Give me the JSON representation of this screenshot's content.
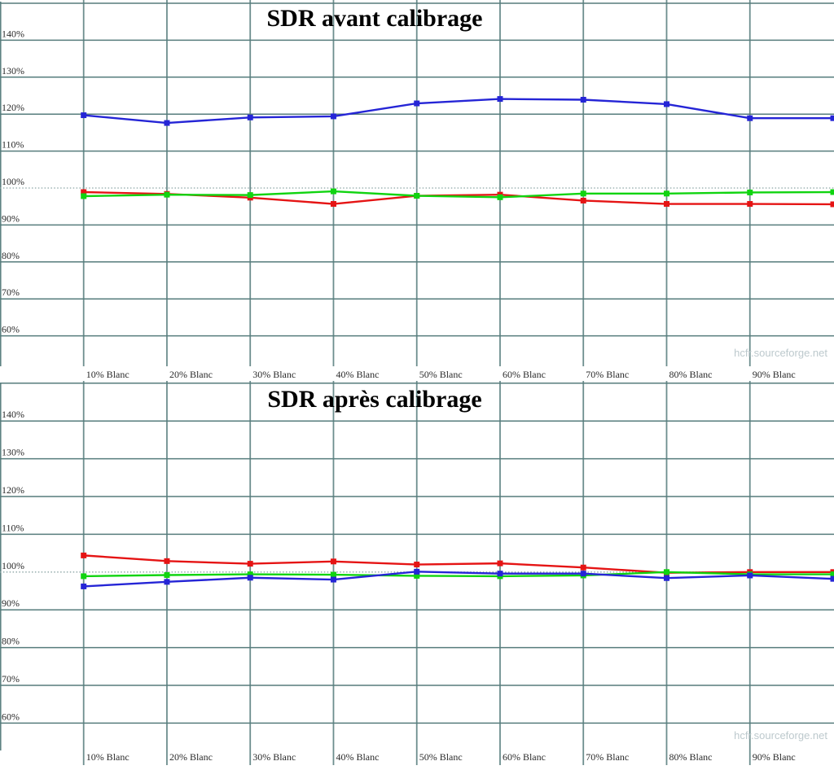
{
  "watermark": "hcfr.sourceforge.net",
  "colors": {
    "red": "#e51414",
    "green": "#10d410",
    "blue": "#2525d6",
    "grid_horizontal": "#567c7c",
    "grid_vertical": "#6d8e8e",
    "ref_line": "#8aa4a4",
    "axis_label": "#2a2a2a",
    "title": "#000000",
    "watermark": "#bdc9cd",
    "background": "#ffffff"
  },
  "y_axis": {
    "tick_labels": [
      "140%",
      "130%",
      "120%",
      "110%",
      "100%",
      "90%",
      "80%",
      "70%",
      "60%"
    ],
    "tick_values": [
      140,
      130,
      120,
      110,
      100,
      90,
      80,
      70,
      60
    ]
  },
  "x_axis": {
    "tick_labels": [
      "10% Blanc",
      "20% Blanc",
      "30% Blanc",
      "40% Blanc",
      "50% Blanc",
      "60% Blanc",
      "70% Blanc",
      "80% Blanc",
      "90% Blanc"
    ],
    "tick_values": [
      10,
      20,
      30,
      40,
      50,
      60,
      70,
      80,
      90
    ]
  },
  "chart_data": [
    {
      "type": "line",
      "title": "SDR avant calibrage",
      "xlabel": "",
      "ylabel": "",
      "ylim": [
        51,
        151
      ],
      "grid": true,
      "legend": false,
      "ref_line": 100,
      "x_percent": [
        10,
        20,
        30,
        40,
        50,
        60,
        70,
        80,
        90,
        100
      ],
      "x_tick_labels": [
        "10% Blanc",
        "20% Blanc",
        "30% Blanc",
        "40% Blanc",
        "50% Blanc",
        "60% Blanc",
        "70% Blanc",
        "80% Blanc",
        "90% Blanc"
      ],
      "series": [
        {
          "name": "rouge",
          "color": "red",
          "values": [
            98.9,
            98.4,
            97.4,
            95.7,
            97.9,
            98.2,
            96.6,
            95.7,
            95.7,
            95.6
          ]
        },
        {
          "name": "vert",
          "color": "green",
          "values": [
            97.8,
            98.2,
            98.1,
            99.1,
            97.9,
            97.5,
            98.5,
            98.5,
            98.8,
            98.9
          ]
        },
        {
          "name": "bleu",
          "color": "blue",
          "values": [
            119.7,
            117.6,
            119.1,
            119.4,
            122.9,
            124.1,
            123.9,
            122.7,
            118.9,
            118.9
          ]
        }
      ]
    },
    {
      "type": "line",
      "title": "SDR après calibrage",
      "xlabel": "",
      "ylabel": "",
      "ylim": [
        52,
        150
      ],
      "grid": true,
      "legend": false,
      "ref_line": 100,
      "x_percent": [
        10,
        20,
        30,
        40,
        50,
        60,
        70,
        80,
        90,
        100
      ],
      "x_tick_labels": [
        "10% Blanc",
        "20% Blanc",
        "30% Blanc",
        "40% Blanc",
        "50% Blanc",
        "60% Blanc",
        "70% Blanc",
        "80% Blanc",
        "90% Blanc"
      ],
      "series": [
        {
          "name": "rouge",
          "color": "red",
          "values": [
            104.4,
            102.9,
            102.2,
            102.8,
            102.0,
            102.3,
            101.2,
            99.8,
            100.0,
            100.0
          ]
        },
        {
          "name": "vert",
          "color": "green",
          "values": [
            98.9,
            99.2,
            99.4,
            99.3,
            99.0,
            98.9,
            99.1,
            100.0,
            99.4,
            99.4
          ]
        },
        {
          "name": "bleu",
          "color": "blue",
          "values": [
            96.2,
            97.4,
            98.5,
            98.0,
            100.1,
            99.6,
            99.6,
            98.4,
            99.1,
            98.2
          ]
        }
      ]
    }
  ]
}
